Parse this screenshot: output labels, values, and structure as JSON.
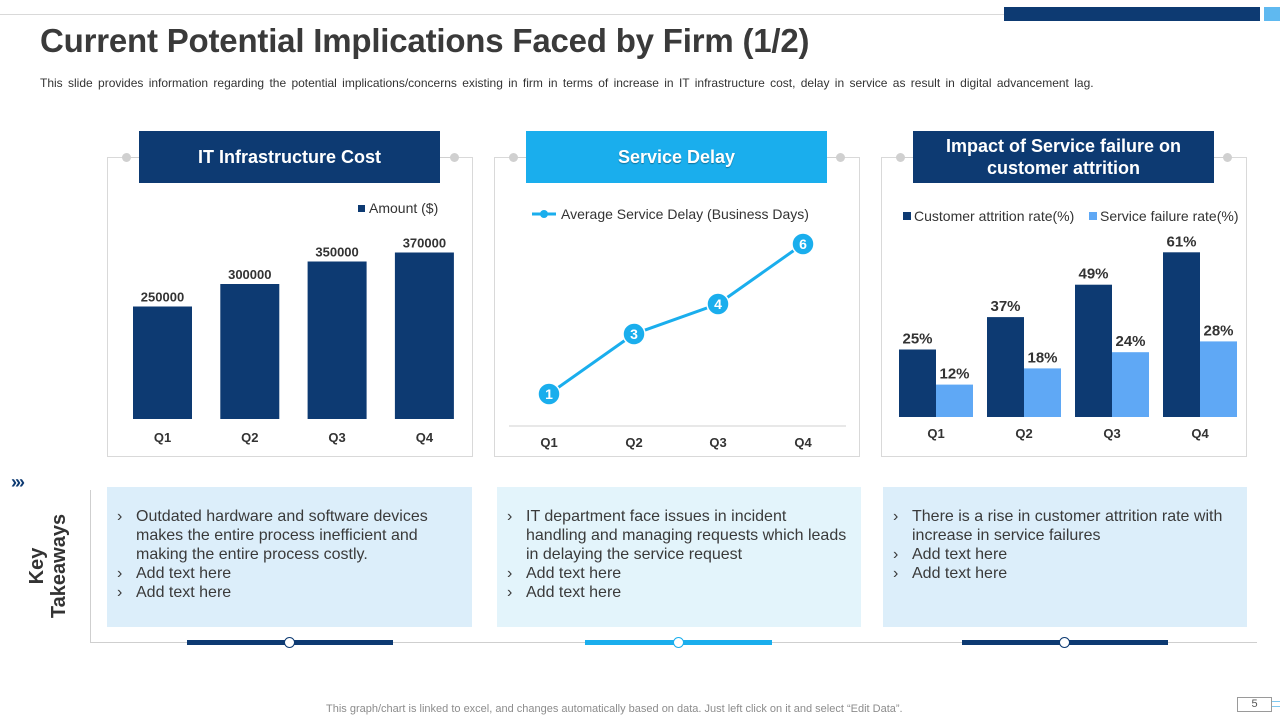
{
  "header": {
    "title": "Current Potential Implications Faced by Firm (1/2)",
    "subtitle": "This slide provides information regarding the potential implications/concerns existing in firm in terms of increase in IT infrastructure cost, delay in service as result in digital advancement lag."
  },
  "colors": {
    "dark_blue": "#0d3a72",
    "light_blue": "#1aaeed",
    "mid_blue": "#5fa8f5"
  },
  "panels": {
    "infra": {
      "title": "IT Infrastructure Cost"
    },
    "delay": {
      "title": "Service Delay"
    },
    "attrition": {
      "title": "Impact of Service failure on customer attrition"
    }
  },
  "chart_data": [
    {
      "type": "bar",
      "title": "IT Infrastructure Cost",
      "categories": [
        "Q1",
        "Q2",
        "Q3",
        "Q4"
      ],
      "series": [
        {
          "name": "Amount ($)",
          "values": [
            250000,
            300000,
            350000,
            370000
          ]
        }
      ],
      "ylim": [
        0,
        400000
      ]
    },
    {
      "type": "line",
      "title": "Service Delay",
      "categories": [
        "Q1",
        "Q2",
        "Q3",
        "Q4"
      ],
      "series": [
        {
          "name": "Average Service Delay (Business Days)",
          "values": [
            1,
            3,
            4,
            6
          ]
        }
      ],
      "ylim": [
        0,
        6
      ]
    },
    {
      "type": "bar",
      "title": "Impact of Service failure on customer attrition",
      "categories": [
        "Q1",
        "Q2",
        "Q3",
        "Q4"
      ],
      "series": [
        {
          "name": "Customer attrition rate(%)",
          "values": [
            25,
            37,
            49,
            61
          ],
          "labels": [
            "25%",
            "37%",
            "49%",
            "61%"
          ]
        },
        {
          "name": "Service failure rate(%)",
          "values": [
            12,
            18,
            24,
            28
          ],
          "labels": [
            "12%",
            "18%",
            "24%",
            "28%"
          ]
        }
      ],
      "ylim": [
        0,
        65
      ]
    }
  ],
  "takeaways": {
    "label_line1": "Key",
    "label_line2": "Takeaways",
    "chevrons": "›››",
    "bullet": "›",
    "boxes": [
      {
        "items": [
          "Outdated hardware and software devices makes the entire process inefficient and making the entire process costly.",
          "Add text here",
          "Add text here"
        ]
      },
      {
        "items": [
          "IT department face issues in incident handling and managing requests which leads in delaying the service request",
          "Add text here",
          "Add text here"
        ]
      },
      {
        "items": [
          "There is a rise in customer attrition rate with increase in service failures",
          "Add text here",
          "Add text here"
        ]
      }
    ]
  },
  "footer": {
    "note": "This graph/chart is linked to excel, and changes automatically based on data. Just left click on it and select “Edit Data”.",
    "page": "5"
  }
}
